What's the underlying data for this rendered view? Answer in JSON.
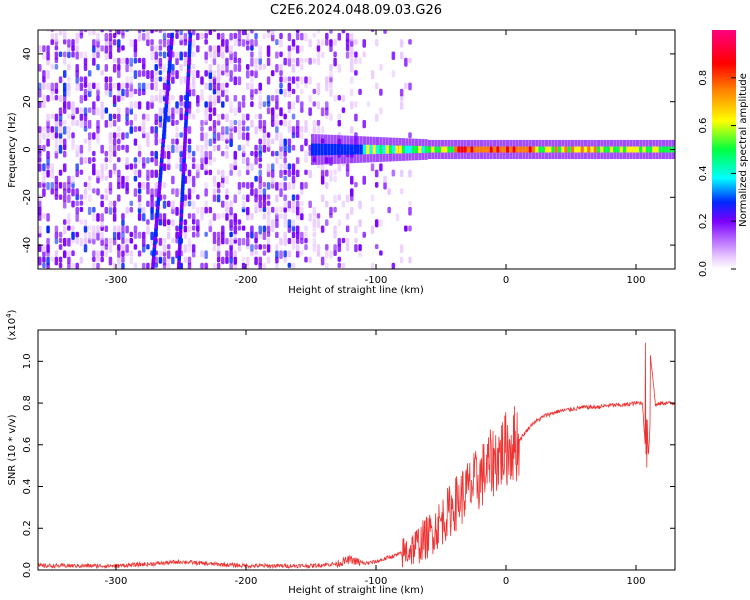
{
  "title": "C2E6.2024.048.09.03.G26",
  "chart_data": [
    {
      "type": "heatmap",
      "xlabel": "Height of straight line (km)",
      "ylabel": "Frequency (Hz)",
      "xlim": [
        -360,
        130
      ],
      "ylim": [
        -50,
        50
      ],
      "x_ticks": [
        -300,
        -200,
        -100,
        0,
        100
      ],
      "x_tick_labels": [
        "-300",
        "-200",
        "-100",
        "0",
        "100"
      ],
      "y_ticks": [
        -40,
        -20,
        0,
        20,
        40
      ],
      "y_tick_labels": [
        "-40",
        "-20",
        "0",
        "20",
        "40"
      ],
      "colorbar": {
        "label": "Normalized spectral amplitude",
        "range": [
          0.0,
          1.0
        ],
        "ticks": [
          0.0,
          0.2,
          0.4,
          0.6,
          0.8
        ],
        "tick_labels": [
          "0.0",
          "0.2",
          "0.4",
          "0.6",
          "0.8"
        ],
        "colors": [
          "#ffffff",
          "#e9c9ff",
          "#7a00ff",
          "#0028ff",
          "#00ffff",
          "#00ff40",
          "#ffff00",
          "#ff8000",
          "#ff0000",
          "#ff0080"
        ]
      },
      "features": {
        "noise_region_x": [
          -360,
          -75
        ],
        "carrier_line_x": [
          -150,
          130
        ],
        "carrier_frequency_hz": 0,
        "satellite_traces": [
          {
            "x_start": -272,
            "x_end": -257,
            "freq_start": -50,
            "freq_end": 48
          },
          {
            "x_start": -252,
            "x_end": -243,
            "freq_start": -50,
            "freq_end": 48
          }
        ],
        "grid": false
      }
    },
    {
      "type": "line",
      "xlabel": "Height of straight line (km)",
      "ylabel": "SNR (10 * v/v)",
      "y_multiplier_label": "(x10^4)",
      "xlim": [
        -360,
        130
      ],
      "ylim": [
        0.0,
        1.15
      ],
      "x_ticks": [
        -300,
        -200,
        -100,
        0,
        100
      ],
      "x_tick_labels": [
        "-300",
        "-200",
        "-100",
        "0",
        "100"
      ],
      "y_ticks": [
        0.0,
        0.2,
        0.4,
        0.6,
        0.8,
        1.0
      ],
      "y_tick_labels": [
        "0.0",
        "0.2",
        "0.4",
        "0.6",
        "0.8",
        "1.0"
      ],
      "color": "#ee3333",
      "series": [
        {
          "x": [
            -360,
            -330,
            -300,
            -270,
            -250,
            -230,
            -200,
            -170,
            -150,
            -130,
            -120,
            -110,
            -100,
            -90,
            -80,
            -70,
            -60,
            -50,
            -40,
            -30,
            -20,
            -10,
            0,
            10,
            20,
            30,
            40,
            50,
            60,
            70,
            80,
            90,
            100,
            105,
            108,
            110,
            115,
            120,
            130
          ],
          "y": [
            0.02,
            0.02,
            0.02,
            0.03,
            0.04,
            0.03,
            0.02,
            0.02,
            0.02,
            0.03,
            0.05,
            0.03,
            0.04,
            0.06,
            0.08,
            0.11,
            0.16,
            0.23,
            0.31,
            0.38,
            0.44,
            0.52,
            0.58,
            0.62,
            0.7,
            0.74,
            0.76,
            0.77,
            0.78,
            0.78,
            0.79,
            0.79,
            0.8,
            0.8,
            0.5,
            1.1,
            0.79,
            0.8,
            0.8
          ]
        }
      ]
    }
  ]
}
